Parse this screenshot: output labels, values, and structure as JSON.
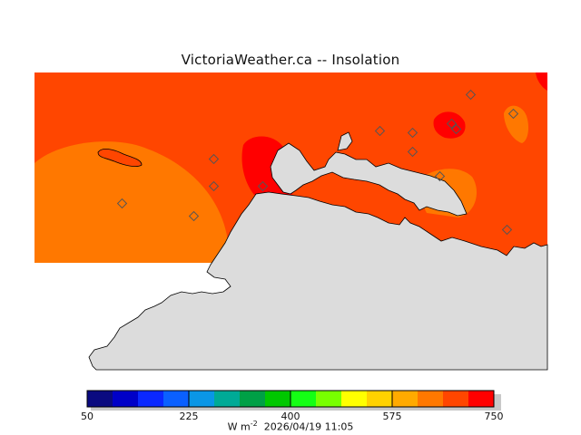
{
  "title": "VictoriaWeather.ca -- Insolation",
  "legend": {
    "colors": [
      "#0a0a80",
      "#0000c8",
      "#0a28ff",
      "#0a60ff",
      "#0a96e6",
      "#00aa96",
      "#00a046",
      "#00c800",
      "#14ff14",
      "#78ff00",
      "#ffff00",
      "#ffd200",
      "#ffaa00",
      "#ff7800",
      "#ff4600",
      "#ff0000"
    ],
    "tick_labels": [
      "50",
      "225",
      "400",
      "575",
      "750"
    ],
    "units": "W m",
    "units_exponent": "-2",
    "timestamp": "2026/04/19 11:05"
  },
  "map": {
    "land_color": "#dcdcdc",
    "field_base_color": "#ff4600",
    "field_low_color": "#ff7800",
    "field_high_color": "#ff0000",
    "station_count": 14
  }
}
